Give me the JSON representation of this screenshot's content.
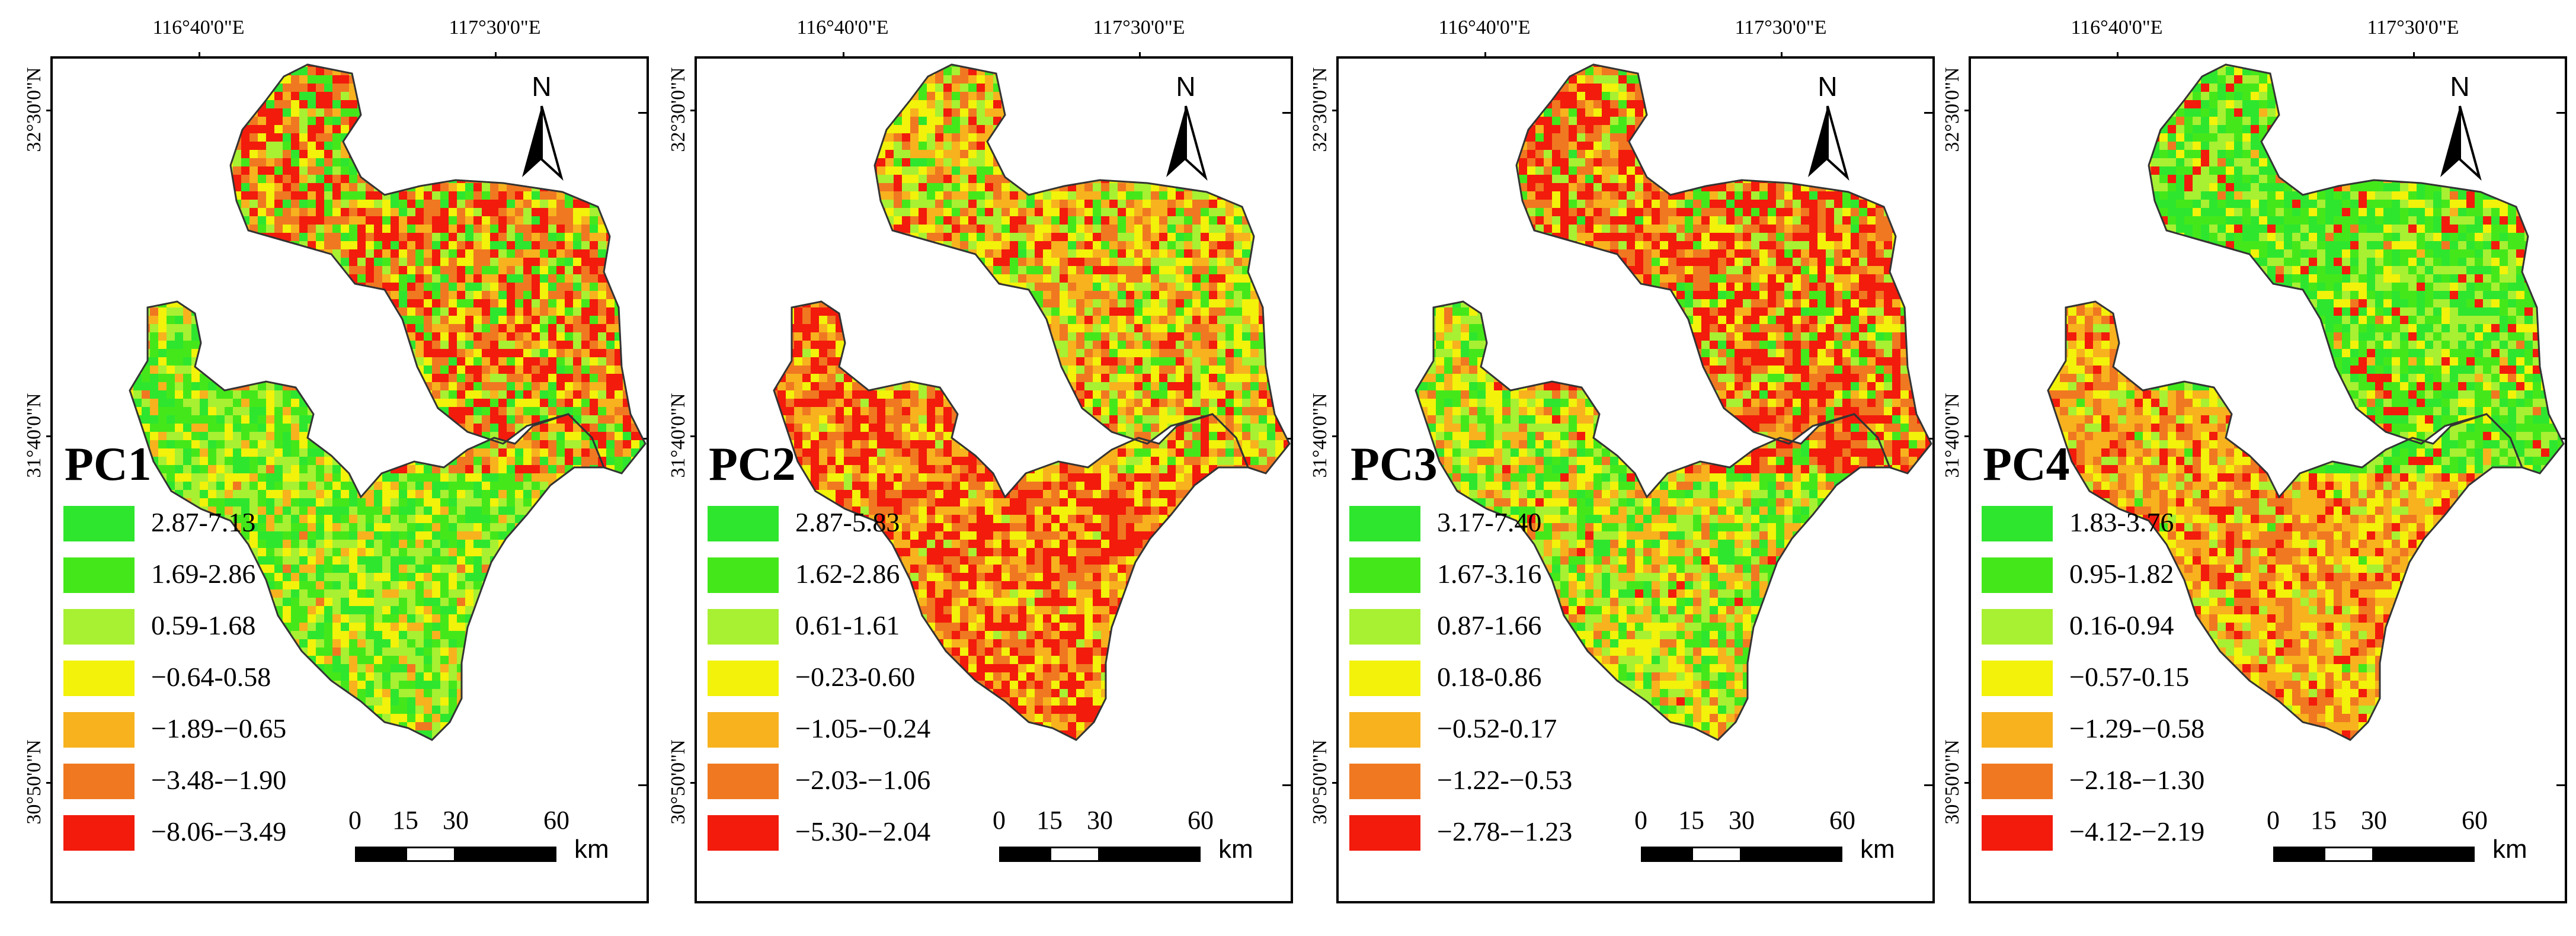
{
  "coordinates": {
    "lon_left": "116°40'0\"E",
    "lon_right": "117°30'0\"E",
    "lat_top": "32°30'0\"N",
    "lat_mid": "31°40'0\"N",
    "lat_bottom": "30°50'0\"N"
  },
  "north_label": "N",
  "scale": {
    "ticks": [
      "0",
      "15",
      "30",
      "60"
    ],
    "unit": "km"
  },
  "panels": [
    {
      "title": "PC1",
      "legend": [
        {
          "label": "2.87-7.13",
          "color": "#2ee62e"
        },
        {
          "label": "1.69-2.86",
          "color": "#44e81a"
        },
        {
          "label": "0.59-1.68",
          "color": "#a8f032"
        },
        {
          "label": "−0.64-0.58",
          "color": "#f2f20a"
        },
        {
          "label": "−1.89-−0.65",
          "color": "#f7b21e"
        },
        {
          "label": "−3.48-−1.90",
          "color": "#f07821"
        },
        {
          "label": "−8.06-−3.49",
          "color": "#f21b0c"
        }
      ]
    },
    {
      "title": "PC2",
      "legend": [
        {
          "label": "2.87-5.83",
          "color": "#2ee62e"
        },
        {
          "label": "1.62-2.86",
          "color": "#44e81a"
        },
        {
          "label": "0.61-1.61",
          "color": "#a8f032"
        },
        {
          "label": "−0.23-0.60",
          "color": "#f2f20a"
        },
        {
          "label": "−1.05-−0.24",
          "color": "#f7b21e"
        },
        {
          "label": "−2.03-−1.06",
          "color": "#f07821"
        },
        {
          "label": "−5.30-−2.04",
          "color": "#f21b0c"
        }
      ]
    },
    {
      "title": "PC3",
      "legend": [
        {
          "label": "3.17-7.40",
          "color": "#2ee62e"
        },
        {
          "label": "1.67-3.16",
          "color": "#44e81a"
        },
        {
          "label": "0.87-1.66",
          "color": "#a8f032"
        },
        {
          "label": "0.18-0.86",
          "color": "#f2f20a"
        },
        {
          "label": "−0.52-0.17",
          "color": "#f7b21e"
        },
        {
          "label": "−1.22-−0.53",
          "color": "#f07821"
        },
        {
          "label": "−2.78-−1.23",
          "color": "#f21b0c"
        }
      ]
    },
    {
      "title": "PC4",
      "legend": [
        {
          "label": "1.83-3.76",
          "color": "#2ee62e"
        },
        {
          "label": "0.95-1.82",
          "color": "#44e81a"
        },
        {
          "label": "0.16-0.94",
          "color": "#a8f032"
        },
        {
          "label": "−0.57-0.15",
          "color": "#f2f20a"
        },
        {
          "label": "−1.29-−0.58",
          "color": "#f7b21e"
        },
        {
          "label": "−2.18-−1.30",
          "color": "#f07821"
        },
        {
          "label": "−4.12-−2.19",
          "color": "#f21b0c"
        }
      ]
    }
  ]
}
